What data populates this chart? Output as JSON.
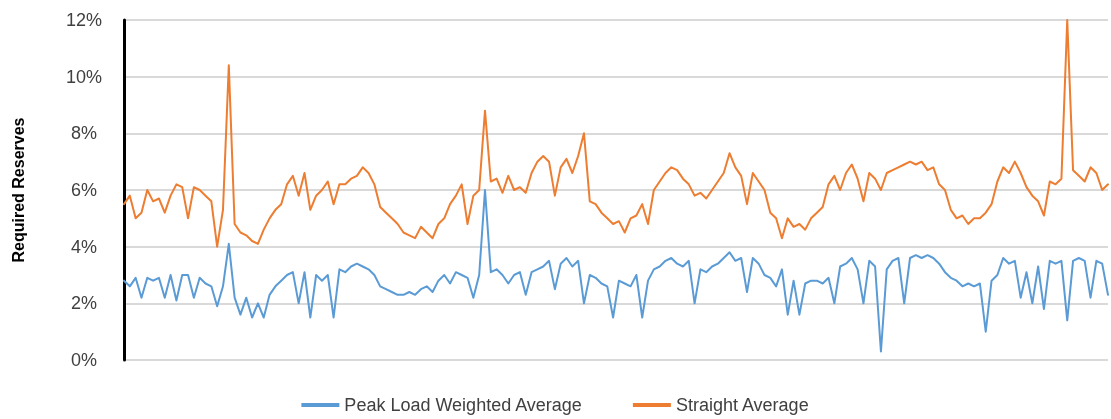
{
  "chart_data": {
    "type": "line",
    "ylabel": "Required Reserves",
    "categories": [
      null,
      null,
      null,
      null,
      null,
      null,
      null,
      null,
      null,
      null,
      null,
      null,
      null,
      null,
      null,
      null,
      null,
      null,
      null,
      null,
      null,
      null,
      null,
      null,
      null,
      null,
      null,
      null,
      null,
      null,
      null,
      null,
      null,
      null,
      null,
      null,
      null,
      null,
      null,
      null,
      null,
      null,
      null,
      null,
      null,
      null,
      null,
      null,
      null,
      null,
      null,
      null,
      null,
      null,
      null,
      null,
      null,
      null,
      null,
      null,
      null,
      null,
      null,
      null,
      null,
      null,
      null,
      null,
      null,
      null,
      null,
      null,
      null,
      null,
      null,
      null,
      null,
      null,
      null,
      null,
      null,
      null,
      null,
      null,
      null,
      null,
      null,
      null,
      null,
      null,
      null,
      null,
      null,
      null,
      null,
      null,
      null,
      null,
      null,
      null,
      null,
      null,
      null,
      null,
      null,
      null,
      null,
      null,
      null,
      null,
      null,
      null,
      null,
      null,
      null,
      null,
      null,
      null,
      null,
      null,
      null,
      null,
      null,
      null,
      null,
      null,
      null,
      null,
      null,
      null,
      null,
      null,
      null,
      null,
      null,
      null,
      null,
      null,
      null,
      null,
      null,
      null,
      null,
      null,
      null,
      null,
      null,
      null,
      null,
      null,
      null,
      null,
      null,
      null,
      null,
      null,
      null,
      null,
      null,
      null,
      null,
      null,
      null,
      null,
      null,
      null,
      null,
      null,
      null,
      null
    ],
    "series": [
      {
        "name": "Peak Load Weighted Average",
        "color": "#5b9bd5",
        "values": [
          2.8,
          2.6,
          2.9,
          2.2,
          2.9,
          2.8,
          2.9,
          2.2,
          3.0,
          2.1,
          3.0,
          3.0,
          2.2,
          2.9,
          2.7,
          2.6,
          1.9,
          2.6,
          4.1,
          2.2,
          1.6,
          2.2,
          1.5,
          2.0,
          1.5,
          2.3,
          2.6,
          2.8,
          3.0,
          3.1,
          2.0,
          3.1,
          1.5,
          3.0,
          2.8,
          3.0,
          1.5,
          3.2,
          3.1,
          3.3,
          3.4,
          3.3,
          3.2,
          3.0,
          2.6,
          2.5,
          2.4,
          2.3,
          2.3,
          2.4,
          2.3,
          2.5,
          2.6,
          2.4,
          2.8,
          3.0,
          2.7,
          3.1,
          3.0,
          2.9,
          2.2,
          3.0,
          6.0,
          3.1,
          3.2,
          3.0,
          2.7,
          3.0,
          3.1,
          2.3,
          3.1,
          3.2,
          3.3,
          3.5,
          2.5,
          3.4,
          3.6,
          3.3,
          3.5,
          2.0,
          3.0,
          2.9,
          2.7,
          2.6,
          1.5,
          2.8,
          2.7,
          2.6,
          3.0,
          1.5,
          2.8,
          3.2,
          3.3,
          3.5,
          3.6,
          3.4,
          3.3,
          3.5,
          2.0,
          3.2,
          3.1,
          3.3,
          3.4,
          3.6,
          3.8,
          3.5,
          3.6,
          2.4,
          3.6,
          3.4,
          3.0,
          2.9,
          2.6,
          3.2,
          1.6,
          2.8,
          1.6,
          2.7,
          2.8,
          2.8,
          2.7,
          2.9,
          2.0,
          3.3,
          3.4,
          3.6,
          3.2,
          2.0,
          3.5,
          3.3,
          0.3,
          3.2,
          3.5,
          3.6,
          2.0,
          3.6,
          3.7,
          3.6,
          3.7,
          3.6,
          3.4,
          3.1,
          2.9,
          2.8,
          2.6,
          2.7,
          2.6,
          2.7,
          1.0,
          2.8,
          3.0,
          3.6,
          3.4,
          3.5,
          2.2,
          3.1,
          2.0,
          3.3,
          1.8,
          3.5,
          3.4,
          3.5,
          1.4,
          3.5,
          3.6,
          3.5,
          2.2,
          3.5,
          3.4,
          2.3
        ]
      },
      {
        "name": "Straight Average",
        "color": "#ed7d31",
        "values": [
          5.5,
          5.8,
          5.0,
          5.2,
          6.0,
          5.6,
          5.7,
          5.2,
          5.8,
          6.2,
          6.1,
          5.0,
          6.1,
          6.0,
          5.8,
          5.6,
          4.0,
          5.3,
          10.4,
          4.8,
          4.5,
          4.4,
          4.2,
          4.1,
          4.6,
          5.0,
          5.3,
          5.5,
          6.2,
          6.5,
          5.8,
          6.6,
          5.3,
          5.8,
          6.0,
          6.3,
          5.5,
          6.2,
          6.2,
          6.4,
          6.5,
          6.8,
          6.6,
          6.2,
          5.4,
          5.2,
          5.0,
          4.8,
          4.5,
          4.4,
          4.3,
          4.7,
          4.5,
          4.3,
          4.8,
          5.0,
          5.5,
          5.8,
          6.2,
          4.8,
          5.8,
          6.0,
          8.8,
          6.3,
          6.4,
          5.9,
          6.5,
          6.0,
          6.1,
          5.9,
          6.6,
          7.0,
          7.2,
          7.0,
          5.8,
          6.8,
          7.1,
          6.6,
          7.2,
          8.0,
          5.6,
          5.5,
          5.2,
          5.0,
          4.8,
          4.9,
          4.5,
          5.0,
          5.1,
          5.5,
          4.8,
          6.0,
          6.3,
          6.6,
          6.8,
          6.7,
          6.4,
          6.2,
          5.8,
          5.9,
          5.7,
          6.0,
          6.3,
          6.6,
          7.3,
          6.8,
          6.5,
          5.5,
          6.6,
          6.3,
          6.0,
          5.2,
          5.0,
          4.3,
          5.0,
          4.7,
          4.8,
          4.6,
          5.0,
          5.2,
          5.4,
          6.2,
          6.5,
          6.0,
          6.6,
          6.9,
          6.4,
          5.6,
          6.6,
          6.4,
          6.0,
          6.6,
          6.7,
          6.8,
          6.9,
          7.0,
          6.9,
          7.0,
          6.7,
          6.8,
          6.2,
          6.0,
          5.3,
          5.0,
          5.1,
          4.8,
          5.0,
          5.0,
          5.2,
          5.5,
          6.3,
          6.8,
          6.6,
          7.0,
          6.6,
          6.1,
          5.8,
          5.6,
          5.1,
          6.3,
          6.2,
          6.4,
          12.0,
          6.7,
          6.5,
          6.3,
          6.8,
          6.6,
          6.0,
          6.2
        ]
      }
    ],
    "ylim": [
      0,
      12
    ],
    "yticks": [
      {
        "value": 0,
        "label": "0%"
      },
      {
        "value": 2,
        "label": "2%"
      },
      {
        "value": 4,
        "label": "4%"
      },
      {
        "value": 6,
        "label": "6%"
      },
      {
        "value": 8,
        "label": "8%"
      },
      {
        "value": 10,
        "label": "10%"
      },
      {
        "value": 12,
        "label": "12%"
      }
    ],
    "grid": "y",
    "legend": "bottom",
    "marker": "none",
    "line_style": "solid"
  }
}
